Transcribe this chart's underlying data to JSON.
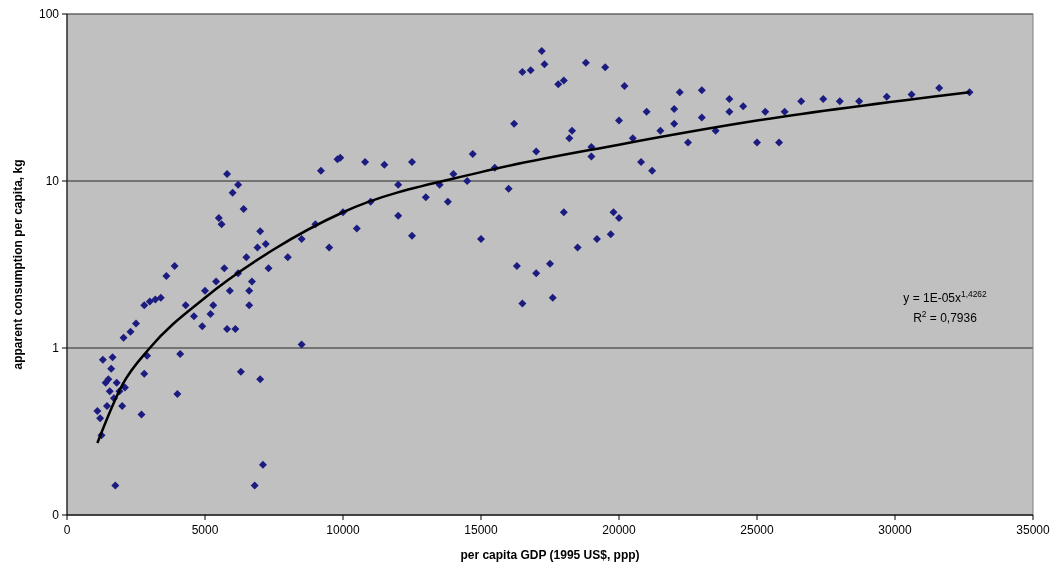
{
  "chart_data": {
    "type": "scatter",
    "xlabel": "per capita GDP (1995 US$, ppp)",
    "ylabel": "apparent consumption per capita, kg",
    "log": "y",
    "grid": "y",
    "marker": "diamond",
    "xlim": [
      0,
      35000
    ],
    "xticks": [
      0,
      5000,
      10000,
      15000,
      20000,
      25000,
      30000,
      35000
    ],
    "ylim": [
      0.1,
      100
    ],
    "yticks": [
      {
        "value": 0.1,
        "label": "0"
      },
      1,
      10,
      100
    ],
    "annotations": [
      "y = 1E-05x$^{1,4262}$",
      "R$^{2}$ = 0,7936"
    ],
    "series": [
      {
        "color": "#1c1c80",
        "x": [
          1100,
          1200,
          1250,
          1300,
          1400,
          1450,
          1500,
          1550,
          1600,
          1650,
          1700,
          1750,
          1800,
          1900,
          2000,
          2050,
          2100,
          2300,
          2500,
          2700,
          2800,
          2800,
          2900,
          3000,
          3200,
          3400,
          3600,
          3900,
          4000,
          4100,
          4300,
          4600,
          4900,
          5000,
          5200,
          5400,
          5500,
          5600,
          5700,
          5800,
          5800,
          5900,
          6000,
          6100,
          6200,
          6200,
          6300,
          6400,
          6500,
          6600,
          6700,
          6800,
          6900,
          7000,
          7000,
          7100,
          7200,
          7300,
          8000,
          8500,
          8500,
          9000,
          9200,
          9500,
          9800,
          10000,
          10500,
          11000,
          11500,
          12000,
          12000,
          12500,
          12500,
          13000,
          13500,
          14000,
          14500,
          14700,
          15000,
          15500,
          16000,
          16200,
          16300,
          16500,
          16500,
          16800,
          17000,
          17000,
          17200,
          17300,
          17500,
          17600,
          17800,
          18000,
          18000,
          18300,
          18500,
          18800,
          19000,
          19200,
          19500,
          19700,
          19800,
          20000,
          20000,
          20200,
          20500,
          21000,
          21200,
          21500,
          22000,
          22200,
          22500,
          23000,
          23000,
          23500,
          24000,
          24500,
          25000,
          25300,
          25800,
          26000,
          26600,
          27400,
          28000,
          28700,
          29700,
          30600,
          31600,
          32700,
          13800,
          10800,
          9900,
          6600,
          5300,
          19000,
          22000,
          24000,
          20800,
          18200
        ],
        "values": [
          0.42,
          0.38,
          0.3,
          0.85,
          0.62,
          0.45,
          0.65,
          0.55,
          0.75,
          0.88,
          0.5,
          0.15,
          0.62,
          0.55,
          0.45,
          1.15,
          0.58,
          1.25,
          1.4,
          0.4,
          0.7,
          1.8,
          0.9,
          1.9,
          1.95,
          2.0,
          2.7,
          3.1,
          0.53,
          0.92,
          1.8,
          1.55,
          1.35,
          2.2,
          1.6,
          2.5,
          6.0,
          5.5,
          3.0,
          1.3,
          11,
          2.2,
          8.5,
          1.3,
          9.5,
          2.8,
          0.72,
          6.8,
          3.5,
          1.8,
          2.5,
          0.15,
          4.0,
          5.0,
          0.65,
          0.2,
          4.2,
          3.0,
          3.5,
          1.05,
          4.5,
          5.5,
          11.5,
          4.0,
          13.5,
          6.5,
          5.2,
          7.5,
          12.5,
          9.5,
          6.2,
          13,
          4.7,
          8.0,
          9.5,
          11,
          10,
          14.5,
          4.5,
          12,
          9,
          22,
          3.1,
          1.85,
          45,
          46,
          2.8,
          15,
          60,
          50,
          3.2,
          2.0,
          38,
          40,
          6.5,
          20,
          4.0,
          51,
          16,
          4.5,
          48,
          4.8,
          6.5,
          6.0,
          23,
          37,
          18,
          26,
          11.5,
          20,
          27,
          34,
          17,
          35,
          24,
          20,
          31,
          28,
          17,
          26,
          17,
          26,
          30,
          31,
          30,
          30,
          32,
          33,
          36,
          34,
          7.5,
          13,
          13.8,
          2.2,
          1.8,
          14,
          22,
          26,
          13,
          18
        ]
      },
      {
        "type": "line",
        "color": "#000000",
        "marker": "none",
        "x": [
          1100,
          2000,
          3000,
          5000,
          7500,
          10000,
          15000,
          20000,
          25000,
          32700
        ],
        "values": [
          0.27,
          0.6,
          1.0,
          2.0,
          3.9,
          6.5,
          11.3,
          16.5,
          23,
          34
        ]
      }
    ]
  }
}
